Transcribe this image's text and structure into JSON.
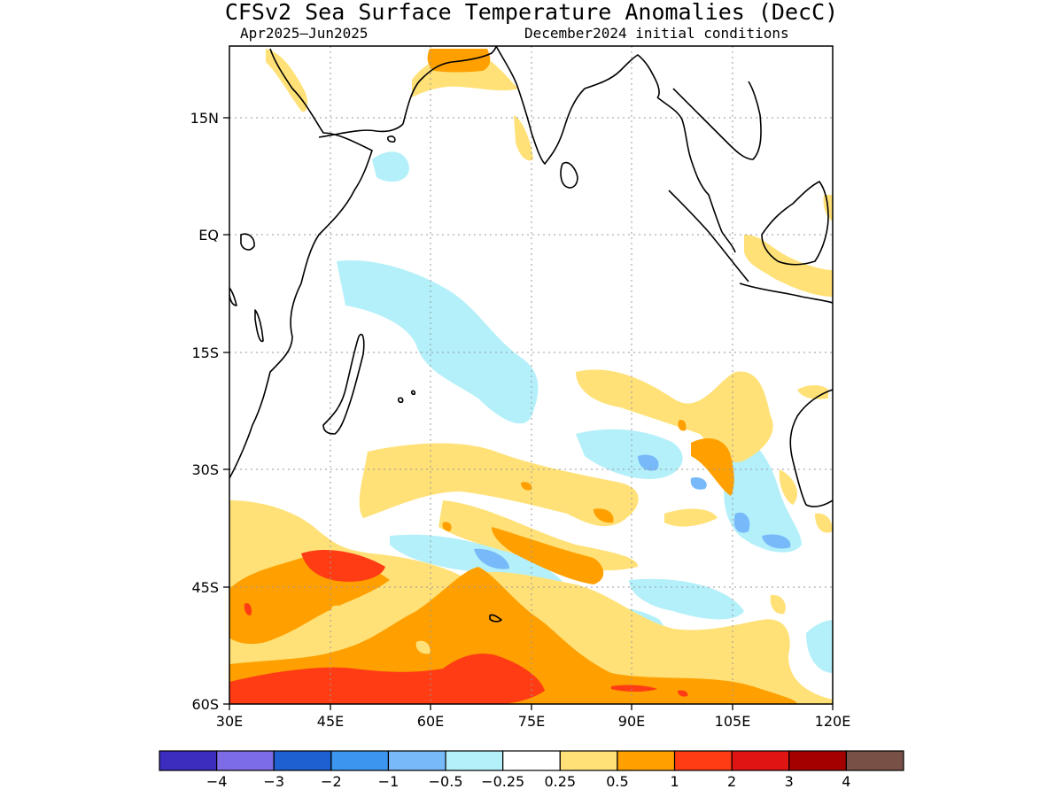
{
  "title": "CFSv2 Sea Surface Temperature Anomalies (DecC)",
  "period": "Apr2025–Jun2025",
  "initial_conditions": "December2024 initial conditions",
  "axes": {
    "lon_labels": [
      "30E",
      "45E",
      "60E",
      "75E",
      "90E",
      "105E",
      "120E"
    ],
    "lat_labels": [
      "15N",
      "EQ",
      "15S",
      "30S",
      "45S",
      "60S"
    ]
  },
  "colorbar": {
    "colors": [
      "#3c2dbe",
      "#7c6ce6",
      "#1e5fd2",
      "#3c96f0",
      "#78b9fa",
      "#b4f0fa",
      "#ffffff",
      "#ffe178",
      "#ffa000",
      "#ff3c14",
      "#e11414",
      "#a50000",
      "#785046"
    ],
    "labels": [
      "−4",
      "−3",
      "−2",
      "−1",
      "−0.5",
      "−0.25",
      "0.25",
      "0.5",
      "1",
      "2",
      "3",
      "4"
    ]
  }
}
